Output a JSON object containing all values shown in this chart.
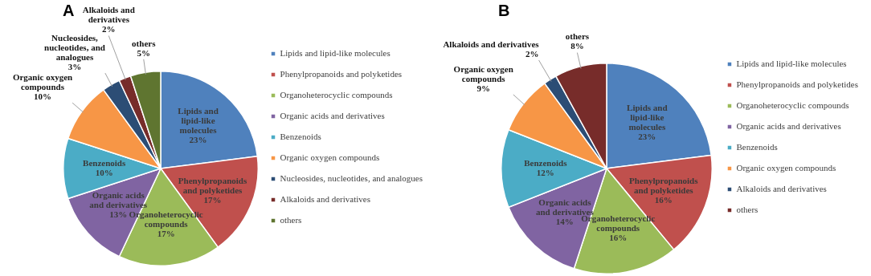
{
  "chart_data": [
    {
      "type": "pie",
      "title": "A",
      "legend": "right",
      "categories": [
        "Lipids and lipid-like molecules",
        "Phenylpropanoids and polyketides",
        "Organoheterocyclic compounds",
        "Organic acids and derivatives",
        "Benzenoids",
        "Organic oxygen compounds",
        "Nucleosides, nucleotides, and analogues",
        "Alkaloids and derivatives",
        "others"
      ],
      "values": [
        23,
        17,
        17,
        13,
        10,
        10,
        3,
        2,
        5
      ],
      "value_labels": [
        "23%",
        "17%",
        "17%",
        "13%",
        "10%",
        "10%",
        "3%",
        "2%",
        "5%"
      ],
      "colors": [
        "#4f81bd",
        "#c0504d",
        "#9bbb59",
        "#8064a2",
        "#4bacc6",
        "#f79646",
        "#2c4d75",
        "#772c2a",
        "#5f7530"
      ]
    },
    {
      "type": "pie",
      "title": "B",
      "legend": "right",
      "categories": [
        "Lipids and lipid-like molecules",
        "Phenylpropanoids and polyketides",
        "Organoheterocyclic compounds",
        "Organic acids and derivatives",
        "Benzenoids",
        "Organic oxygen compounds",
        "Alkaloids and derivatives",
        "others"
      ],
      "values": [
        23,
        16,
        16,
        14,
        12,
        9,
        2,
        8
      ],
      "value_labels": [
        "23%",
        "16%",
        "16%",
        "14%",
        "12%",
        "9%",
        "2%",
        "8%"
      ],
      "colors": [
        "#4f81bd",
        "#c0504d",
        "#9bbb59",
        "#8064a2",
        "#4bacc6",
        "#f79646",
        "#2c4d75",
        "#772c2a"
      ]
    }
  ]
}
